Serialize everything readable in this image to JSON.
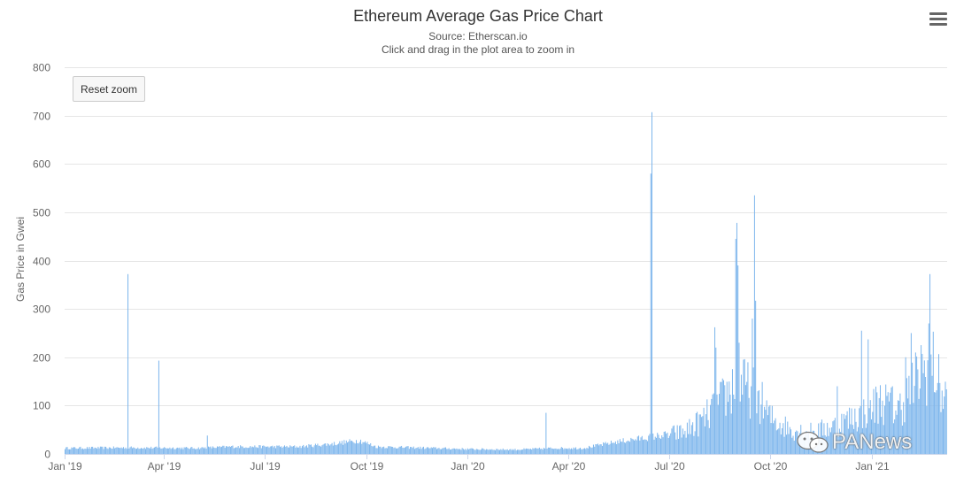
{
  "chart_data": {
    "type": "bar",
    "title": "Ethereum Average Gas Price Chart",
    "subtitle_source": "Source: Etherscan.io",
    "subtitle_hint": "Click and drag in the plot area to zoom in",
    "ylabel": "Gas Price in Gwei",
    "xlabel": "",
    "ylim": [
      0,
      800
    ],
    "yticks": [
      0,
      100,
      200,
      300,
      400,
      500,
      600,
      700,
      800
    ],
    "x_range": [
      "2019-01-01",
      "2021-03-10"
    ],
    "xticks": [
      {
        "label": "Jan '19",
        "date": "2019-01-01"
      },
      {
        "label": "Apr '19",
        "date": "2019-04-01"
      },
      {
        "label": "Jul '19",
        "date": "2019-07-01"
      },
      {
        "label": "Oct '19",
        "date": "2019-10-01"
      },
      {
        "label": "Jan '20",
        "date": "2020-01-01"
      },
      {
        "label": "Apr '20",
        "date": "2020-04-01"
      },
      {
        "label": "Jul '20",
        "date": "2020-07-01"
      },
      {
        "label": "Oct '20",
        "date": "2020-10-01"
      },
      {
        "label": "Jan '21",
        "date": "2021-01-01"
      }
    ],
    "grid": true,
    "legend": "none",
    "color": "#7cb5ec",
    "series_description": "Daily average gas price (Gwei); approximate monthly baseline levels and notable daily spikes read from chart",
    "baseline": [
      {
        "date": "2019-01-01",
        "value": 12
      },
      {
        "date": "2019-03-01",
        "value": 13
      },
      {
        "date": "2019-05-01",
        "value": 12
      },
      {
        "date": "2019-06-01",
        "value": 15
      },
      {
        "date": "2019-08-01",
        "value": 15
      },
      {
        "date": "2019-09-01",
        "value": 21
      },
      {
        "date": "2019-09-25",
        "value": 28
      },
      {
        "date": "2019-10-10",
        "value": 15
      },
      {
        "date": "2019-12-01",
        "value": 12
      },
      {
        "date": "2020-01-01",
        "value": 10
      },
      {
        "date": "2020-02-15",
        "value": 9
      },
      {
        "date": "2020-03-20",
        "value": 12
      },
      {
        "date": "2020-04-15",
        "value": 12
      },
      {
        "date": "2020-05-15",
        "value": 25
      },
      {
        "date": "2020-06-15",
        "value": 35
      },
      {
        "date": "2020-07-15",
        "value": 45
      },
      {
        "date": "2020-08-01",
        "value": 70
      },
      {
        "date": "2020-08-15",
        "value": 100
      },
      {
        "date": "2020-09-01",
        "value": 150
      },
      {
        "date": "2020-09-20",
        "value": 120
      },
      {
        "date": "2020-10-01",
        "value": 75
      },
      {
        "date": "2020-10-20",
        "value": 50
      },
      {
        "date": "2020-11-10",
        "value": 45
      },
      {
        "date": "2020-12-01",
        "value": 60
      },
      {
        "date": "2020-12-20",
        "value": 80
      },
      {
        "date": "2021-01-10",
        "value": 110
      },
      {
        "date": "2021-01-25",
        "value": 90
      },
      {
        "date": "2021-02-10",
        "value": 150
      },
      {
        "date": "2021-02-25",
        "value": 190
      },
      {
        "date": "2021-03-05",
        "value": 130
      },
      {
        "date": "2021-03-10",
        "value": 115
      }
    ],
    "spikes": [
      {
        "date": "2019-02-27",
        "value": 372
      },
      {
        "date": "2019-03-27",
        "value": 193
      },
      {
        "date": "2019-05-10",
        "value": 38
      },
      {
        "date": "2020-03-12",
        "value": 85
      },
      {
        "date": "2020-06-16",
        "value": 707
      },
      {
        "date": "2020-06-15",
        "value": 580
      },
      {
        "date": "2020-08-12",
        "value": 262
      },
      {
        "date": "2020-08-13",
        "value": 220
      },
      {
        "date": "2020-08-31",
        "value": 445
      },
      {
        "date": "2020-09-01",
        "value": 478
      },
      {
        "date": "2020-09-02",
        "value": 390
      },
      {
        "date": "2020-09-03",
        "value": 230
      },
      {
        "date": "2020-09-17",
        "value": 535
      },
      {
        "date": "2020-09-18",
        "value": 317
      },
      {
        "date": "2020-09-15",
        "value": 280
      },
      {
        "date": "2020-12-01",
        "value": 140
      },
      {
        "date": "2020-12-23",
        "value": 255
      },
      {
        "date": "2020-12-29",
        "value": 237
      },
      {
        "date": "2021-01-20",
        "value": 140
      },
      {
        "date": "2021-02-01",
        "value": 200
      },
      {
        "date": "2021-02-06",
        "value": 250
      },
      {
        "date": "2021-02-15",
        "value": 225
      },
      {
        "date": "2021-02-23",
        "value": 372
      },
      {
        "date": "2021-02-22",
        "value": 270
      }
    ]
  },
  "ui": {
    "reset_zoom_label": "Reset zoom",
    "menu_icon": "hamburger-icon",
    "watermark_text": "PANews",
    "watermark_icon": "wechat-icon"
  },
  "colors": {
    "bar": "#7cb5ec",
    "grid": "#e6e6e6",
    "axis_text": "#666666",
    "title": "#333333"
  }
}
